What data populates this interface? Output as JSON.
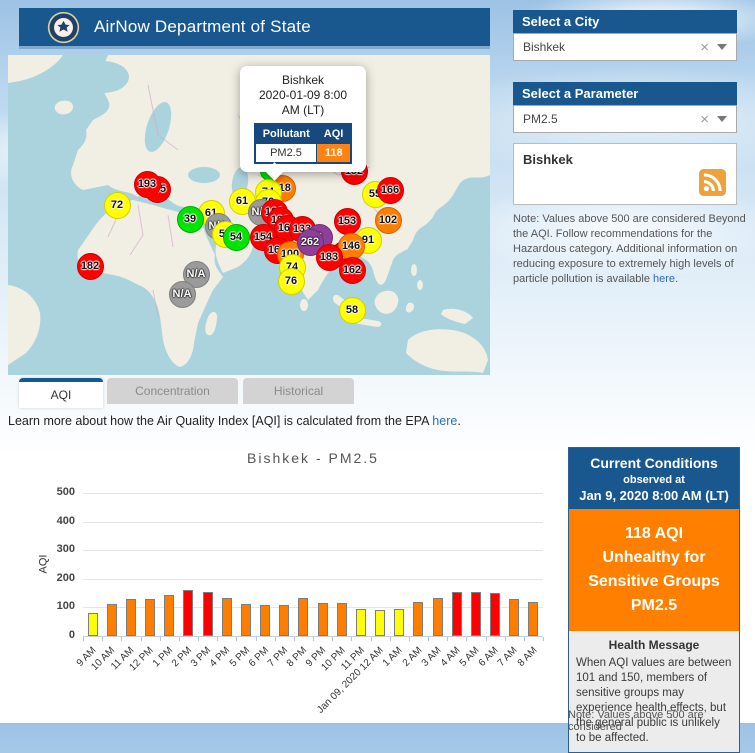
{
  "header": {
    "title": "AirNow Department of State"
  },
  "sidebar": {
    "city": {
      "label": "Select a City",
      "value": "Bishkek"
    },
    "parameter": {
      "label": "Select a Parameter",
      "value": "PM2.5"
    },
    "feed": {
      "title": "Bishkek"
    },
    "note": {
      "text": "Note: Values above 500 are considered Beyond the AQI. Follow recommendations for the Hazardous category. Additional information on reducing exposure to extremely high levels of particle pollution is available ",
      "link_text": "here",
      "suffix": "."
    }
  },
  "map": {
    "popup": {
      "city": "Bishkek",
      "datetime_line1": "2020-01-09 8:00",
      "datetime_line2": "AM (LT)",
      "pollutant_header": "Pollutant",
      "aqi_header": "AQI",
      "pollutant": "PM2.5",
      "aqi": "118"
    },
    "levels": {
      "green": "#00e400",
      "yellow": "#ffff00",
      "orange": "#ff7e00",
      "red": "#ff0000",
      "purple": "#8f3f97",
      "gray": "#9b9b9b"
    },
    "markers": [
      {
        "value": "135",
        "level": "red",
        "x": 149,
        "y": 134
      },
      {
        "value": "193",
        "level": "red",
        "x": 139,
        "y": 129
      },
      {
        "value": "72",
        "level": "yellow",
        "x": 109,
        "y": 150
      },
      {
        "value": "182",
        "level": "red",
        "x": 82,
        "y": 211
      },
      {
        "value": "61",
        "level": "yellow",
        "x": 203,
        "y": 158
      },
      {
        "value": "39",
        "level": "green",
        "x": 182,
        "y": 164
      },
      {
        "value": "N/A",
        "level": "gray",
        "x": 210,
        "y": 171
      },
      {
        "value": "59",
        "level": "yellow",
        "x": 217,
        "y": 179
      },
      {
        "value": "54",
        "level": "green",
        "x": 228,
        "y": 182
      },
      {
        "value": "61",
        "level": "yellow",
        "x": 234,
        "y": 146
      },
      {
        "value": "N/A",
        "level": "gray",
        "x": 188,
        "y": 219
      },
      {
        "value": "N/A",
        "level": "gray",
        "x": 174,
        "y": 239
      },
      {
        "value": "",
        "level": "green",
        "x": 262,
        "y": 116,
        "size": 20
      },
      {
        "value": "118",
        "level": "orange",
        "x": 274,
        "y": 133
      },
      {
        "value": "74",
        "level": "yellow",
        "x": 260,
        "y": 137
      },
      {
        "value": "76",
        "level": "yellow",
        "x": 260,
        "y": 147
      },
      {
        "value": "N/A",
        "level": "gray",
        "x": 253,
        "y": 157
      },
      {
        "value": "166",
        "level": "red",
        "x": 266,
        "y": 157
      },
      {
        "value": "196",
        "level": "red",
        "x": 272,
        "y": 165
      },
      {
        "value": "167",
        "level": "red",
        "x": 279,
        "y": 173
      },
      {
        "value": "133",
        "level": "red",
        "x": 294,
        "y": 174
      },
      {
        "value": "154",
        "level": "red",
        "x": 255,
        "y": 182
      },
      {
        "value": "160",
        "level": "red",
        "x": 269,
        "y": 195
      },
      {
        "value": "100",
        "level": "orange",
        "x": 282,
        "y": 199
      },
      {
        "value": "74",
        "level": "yellow",
        "x": 284,
        "y": 212
      },
      {
        "value": "76",
        "level": "yellow",
        "x": 283,
        "y": 226
      },
      {
        "value": "2",
        "level": "purple",
        "x": 311,
        "y": 182
      },
      {
        "value": "262",
        "level": "purple",
        "x": 302,
        "y": 187
      },
      {
        "value": "152",
        "level": "red",
        "x": 346,
        "y": 116
      },
      {
        "value": "55",
        "level": "yellow",
        "x": 367,
        "y": 139
      },
      {
        "value": "166",
        "level": "red",
        "x": 382,
        "y": 135
      },
      {
        "value": "153",
        "level": "red",
        "x": 339,
        "y": 166
      },
      {
        "value": "102",
        "level": "orange",
        "x": 380,
        "y": 165
      },
      {
        "value": "91",
        "level": "yellow",
        "x": 360,
        "y": 185
      },
      {
        "value": "126",
        "level": "red",
        "x": 336,
        "y": 199
      },
      {
        "value": "146",
        "level": "orange",
        "x": 343,
        "y": 191
      },
      {
        "value": "183",
        "level": "red",
        "x": 321,
        "y": 202
      },
      {
        "value": "162",
        "level": "red",
        "x": 344,
        "y": 215
      },
      {
        "value": "58",
        "level": "yellow",
        "x": 344,
        "y": 255
      }
    ]
  },
  "tabs": {
    "items": [
      {
        "label": "AQI",
        "active": true
      },
      {
        "label": "Concentration",
        "active": false
      },
      {
        "label": "Historical",
        "active": false
      }
    ]
  },
  "learn_more": {
    "text": "Learn more about how the Air Quality Index [AQI] is calculated from the EPA ",
    "link_text": "here",
    "suffix": "."
  },
  "chart_data": {
    "type": "bar",
    "title": "Bishkek - PM2.5",
    "xlabel": "",
    "ylabel": "AQI",
    "ylim": [
      0,
      500
    ],
    "yticks": [
      0,
      100,
      200,
      300,
      400,
      500
    ],
    "grid": true,
    "categories": [
      "9 AM",
      "10 AM",
      "11 AM",
      "12 PM",
      "1 PM",
      "2 PM",
      "3 PM",
      "4 PM",
      "5 PM",
      "6 PM",
      "7 PM",
      "8 PM",
      "9 PM",
      "10 PM",
      "11 PM",
      "Jan 09, 2020 12 AM",
      "1 AM",
      "2 AM",
      "3 AM",
      "4 AM",
      "5 AM",
      "6 AM",
      "7 AM",
      "8 AM"
    ],
    "values": [
      80,
      113,
      131,
      131,
      143,
      160,
      155,
      134,
      113,
      107,
      110,
      132,
      115,
      115,
      95,
      92,
      95,
      120,
      132,
      155,
      155,
      150,
      128,
      118
    ],
    "bar_levels": [
      "yellow",
      "orange",
      "orange",
      "orange",
      "orange",
      "red",
      "red",
      "orange",
      "orange",
      "orange",
      "orange",
      "orange",
      "orange",
      "orange",
      "yellow",
      "yellow",
      "yellow",
      "orange",
      "orange",
      "red",
      "red",
      "red",
      "orange",
      "orange"
    ]
  },
  "current_conditions": {
    "title": "Current Conditions",
    "observed_at": "observed at",
    "datetime": "Jan 9, 2020 8:00 AM (LT)",
    "aqi_line": "118 AQI",
    "category_line1": "Unhealthy for",
    "category_line2": "Sensitive Groups",
    "parameter": "PM2.5",
    "health_header": "Health Message",
    "health_message": "When AQI values are between 101 and 150, members of sensitive groups may experience health effects, but the general public is unlikely to be affected."
  },
  "page_bottom_note": "Note: Values above 500 are considered"
}
